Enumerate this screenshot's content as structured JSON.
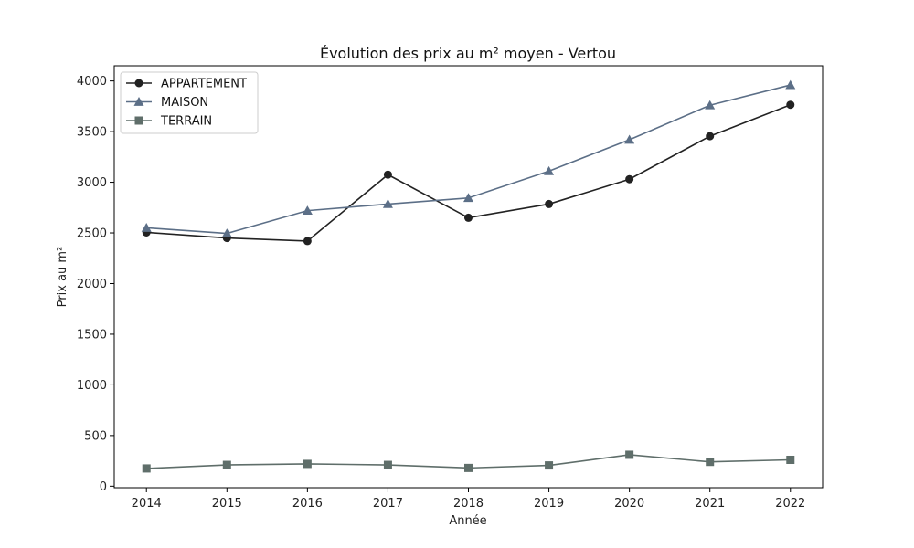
{
  "chart_data": {
    "type": "line",
    "title": "Évolution des prix au m² moyen - Vertou",
    "xlabel": "Année",
    "ylabel": "Prix au m²",
    "x": [
      2014,
      2015,
      2016,
      2017,
      2018,
      2019,
      2020,
      2021,
      2022
    ],
    "xlim": [
      2013.6,
      2022.4
    ],
    "ylim": [
      -15,
      4150
    ],
    "yticks": [
      0,
      500,
      1000,
      1500,
      2000,
      2500,
      3000,
      3500,
      4000
    ],
    "grid": false,
    "legend_position": "top-left",
    "series": [
      {
        "name": "APPARTEMENT",
        "color": "#222222",
        "marker": "circle",
        "values": [
          2505,
          2450,
          2420,
          3075,
          2650,
          2785,
          3030,
          3455,
          3765
        ]
      },
      {
        "name": "MAISON",
        "color": "#5c6f87",
        "marker": "triangle",
        "values": [
          2550,
          2495,
          2720,
          2785,
          2845,
          3110,
          3420,
          3760,
          3960
        ]
      },
      {
        "name": "TERRAIN",
        "color": "#5f6e6a",
        "marker": "square",
        "values": [
          175,
          210,
          220,
          210,
          180,
          205,
          310,
          240,
          260
        ]
      }
    ]
  }
}
